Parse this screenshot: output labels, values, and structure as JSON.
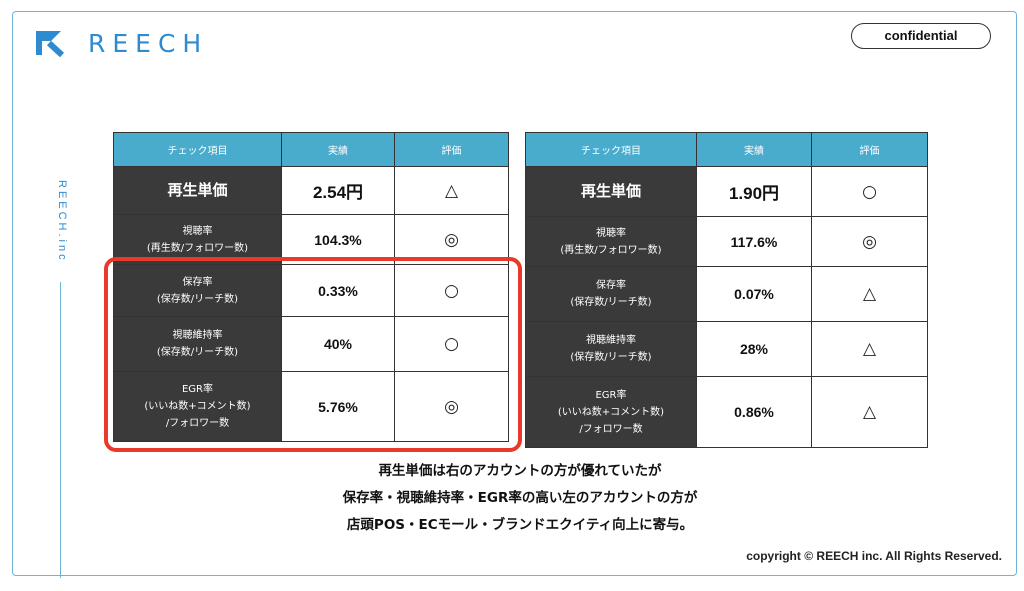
{
  "brand": {
    "name": "REECH",
    "vertical": "REECH.inc"
  },
  "confidential_label": "confidential",
  "left_table": {
    "headers": [
      "チェック項目",
      "実績",
      "評価"
    ],
    "rows": [
      {
        "label": "再生単価",
        "value": "2.54円",
        "rating": "△"
      },
      {
        "label": "視聴率\n(再生数/フォロワー数)",
        "value": "104.3%",
        "rating": "◎"
      },
      {
        "label": "保存率\n(保存数/リーチ数)",
        "value": "0.33%",
        "rating": "○"
      },
      {
        "label": "視聴維持率\n(保存数/リーチ数)",
        "value": "40%",
        "rating": "○"
      },
      {
        "label": "EGR率\n(いいね数+コメント数)\n/フォロワー数",
        "value": "5.76%",
        "rating": "◎"
      }
    ]
  },
  "right_table": {
    "headers": [
      "チェック項目",
      "実績",
      "評価"
    ],
    "rows": [
      {
        "label": "再生単価",
        "value": "1.90円",
        "rating": "○"
      },
      {
        "label": "視聴率\n(再生数/フォロワー数)",
        "value": "117.6%",
        "rating": "◎"
      },
      {
        "label": "保存率\n(保存数/リーチ数)",
        "value": "0.07%",
        "rating": "△"
      },
      {
        "label": "視聴維持率\n(保存数/リーチ数)",
        "value": "28%",
        "rating": "△"
      },
      {
        "label": "EGR率\n(いいね数+コメント数)\n/フォロワー数",
        "value": "0.86%",
        "rating": "△"
      }
    ]
  },
  "summary": {
    "line1": "再生単価は右のアカウントの方が優れていたが",
    "line2": "保存率・視聴維持率・EGR率の高い左のアカウントの方が",
    "line3": "店頭POS・ECモール・ブランドエクイティ向上に寄与。"
  },
  "copyright": "copyright © REECH inc. All Rights Reserved.",
  "colors": {
    "accent": "#2e8bd0",
    "header": "#4aaccd",
    "label_bg": "#3a3a3a",
    "highlight": "#e8392a"
  }
}
